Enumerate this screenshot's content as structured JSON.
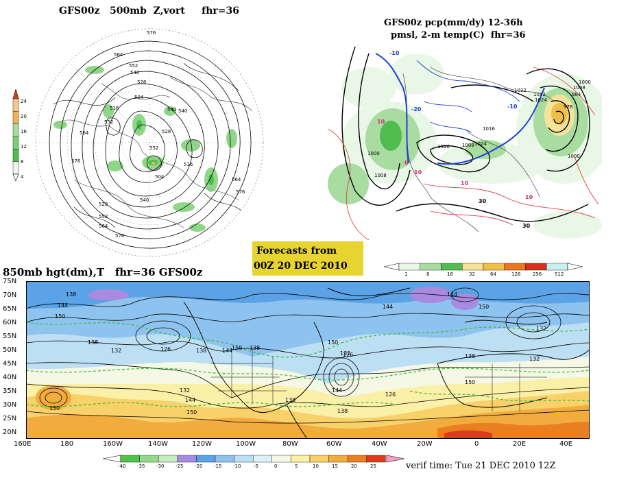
{
  "panel_500mb": {
    "title": "GFS00z   500mb  Z,vort     fhr=36",
    "colorbar": {
      "ticks": [
        "24",
        "20",
        "16",
        "12",
        "8",
        "4"
      ],
      "colors": [
        "#f2c88c",
        "#eeb55a",
        "#a8dca0",
        "#7ccf74",
        "#4fbd50",
        "#e9f7e6"
      ]
    },
    "contour_labels": [
      "576",
      "564",
      "552",
      "540",
      "528",
      "516",
      "504",
      "540",
      "564",
      "576",
      "552",
      "528",
      "540",
      "516",
      "504",
      "552",
      "564",
      "576",
      "540",
      "528",
      "552",
      "564",
      "576"
    ]
  },
  "panel_precip": {
    "title_line1": "GFS00z pcp(mm/dy) 12-36h",
    "title_line2": "pmsl, 2-m temp(C)  fhr=36",
    "colorbar": {
      "ticks": [
        "1",
        "8",
        "16",
        "32",
        "64",
        "128",
        "256",
        "512"
      ],
      "colors": [
        "#e9f7e6",
        "#a8dca0",
        "#4fbd50",
        "#f5e39a",
        "#f0bf4a",
        "#e8781e",
        "#d7301f",
        "#c8f0f0"
      ]
    },
    "isobar_labels": [
      "1000",
      "1008",
      "1016",
      "1024",
      "1032",
      "1016",
      "1008",
      "1000",
      "1024",
      "1032",
      "1000",
      "984",
      "976",
      "1008"
    ],
    "temp_labels": [
      "10",
      "-10",
      "-20",
      "0",
      "10",
      "-10",
      "10",
      "10",
      "30",
      "30"
    ]
  },
  "forecast_box": {
    "line1": "Forecasts from",
    "line2": "00Z 20 DEC 2010",
    "bg": "#e8d431"
  },
  "panel_850mb": {
    "title": "850mb hgt(dm),T   fhr=36 GFS00z",
    "lat_labels": [
      "75N",
      "70N",
      "65N",
      "60N",
      "55N",
      "50N",
      "45N",
      "40N",
      "35N",
      "30N",
      "25N",
      "20N"
    ],
    "lon_labels": [
      "160E",
      "180",
      "160W",
      "140W",
      "120W",
      "100W",
      "80W",
      "60W",
      "40W",
      "20W",
      "0",
      "20E",
      "40E"
    ],
    "height_labels": [
      "138",
      "144",
      "150",
      "138",
      "126",
      "138",
      "144",
      "132",
      "150",
      "138",
      "150",
      "144",
      "138",
      "126",
      "150",
      "132",
      "144",
      "138",
      "132",
      "132",
      "150",
      "144",
      "150",
      "150",
      "138",
      "126",
      "132",
      "144"
    ],
    "colorbar": {
      "ticks": [
        "-40",
        "-35",
        "-30",
        "-25",
        "-20",
        "-15",
        "-10",
        "-5",
        "0",
        "5",
        "10",
        "15",
        "20",
        "25"
      ],
      "colors": [
        "#4fc24a",
        "#93d98b",
        "#c6edc0",
        "#a88ae0",
        "#5ba3e6",
        "#8fc3ef",
        "#bddff4",
        "#dff1f8",
        "#f6f8e6",
        "#fbf0a8",
        "#f9d16a",
        "#f2ac3e",
        "#ea7f22",
        "#e03a1e"
      ]
    }
  },
  "verif_time": "verif time: Tue 21 DEC 2010 12Z"
}
